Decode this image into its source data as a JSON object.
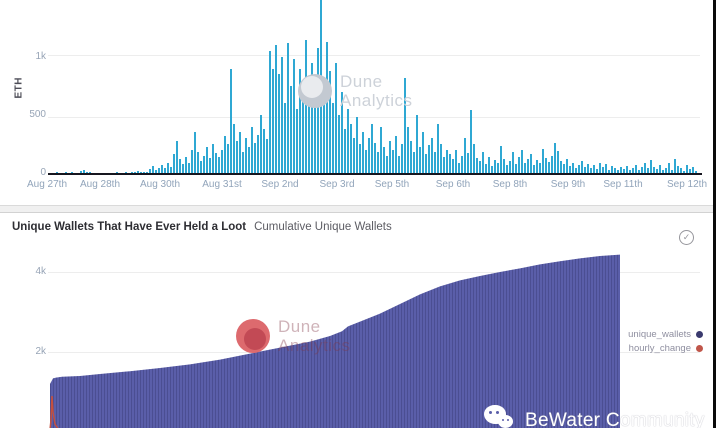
{
  "watermarks": {
    "dune_line1": "Dune",
    "dune_line2": "Analytics",
    "bewater": "BeWater Community"
  },
  "wallets_card": {
    "title": "Unique Wallets That Have Ever Held a Loot",
    "subtitle": "Cumulative Unique Wallets",
    "check_icon": "✓"
  },
  "chart_data": [
    {
      "id": "eth_hourly_volume",
      "type": "bar",
      "ylabel": "ETH",
      "bar_color": "#2FA8D3",
      "ylim": [
        0,
        1500
      ],
      "yticks": [
        {
          "label": "1k",
          "value": 1000
        },
        {
          "label": "500",
          "value": 500
        },
        {
          "label": "0",
          "value": 0
        }
      ],
      "xticks": [
        {
          "label": "Aug 27th",
          "px": 47
        },
        {
          "label": "Aug 28th",
          "px": 100
        },
        {
          "label": "Aug 30th",
          "px": 160
        },
        {
          "label": "Aug 31st",
          "px": 222
        },
        {
          "label": "Sep 2nd",
          "px": 280
        },
        {
          "label": "Sep 3rd",
          "px": 337
        },
        {
          "label": "Sep 5th",
          "px": 392
        },
        {
          "label": "Sep 6th",
          "px": 453
        },
        {
          "label": "Sep 8th",
          "px": 510
        },
        {
          "label": "Sep 9th",
          "px": 568
        },
        {
          "label": "Sep 11th",
          "px": 623
        },
        {
          "label": "Sep 12th",
          "px": 687
        }
      ],
      "values": [
        4,
        2,
        6,
        3,
        2,
        5,
        3,
        8,
        4,
        3,
        18,
        25,
        10,
        5,
        3,
        2,
        4,
        3,
        2,
        4,
        2,
        3,
        6,
        3,
        2,
        8,
        4,
        5,
        10,
        14,
        8,
        6,
        12,
        35,
        60,
        30,
        45,
        70,
        40,
        90,
        55,
        160,
        280,
        120,
        80,
        140,
        90,
        200,
        350,
        180,
        100,
        150,
        220,
        130,
        250,
        170,
        140,
        200,
        320,
        250,
        900,
        420,
        280,
        350,
        180,
        300,
        220,
        400,
        260,
        330,
        500,
        380,
        290,
        1050,
        900,
        1100,
        850,
        1000,
        600,
        1120,
        750,
        980,
        550,
        900,
        700,
        1150,
        800,
        950,
        650,
        1080,
        1500,
        720,
        1130,
        880,
        600,
        950,
        500,
        700,
        380,
        550,
        420,
        300,
        480,
        250,
        350,
        200,
        300,
        420,
        260,
        180,
        400,
        220,
        150,
        280,
        200,
        320,
        150,
        250,
        820,
        400,
        280,
        180,
        500,
        220,
        350,
        160,
        240,
        300,
        180,
        420,
        250,
        140,
        200,
        160,
        120,
        200,
        90,
        150,
        300,
        170,
        540,
        250,
        130,
        100,
        180,
        80,
        140,
        60,
        110,
        90,
        230,
        120,
        70,
        100,
        180,
        80,
        140,
        200,
        90,
        120,
        160,
        70,
        110,
        85,
        210,
        130,
        95,
        150,
        260,
        190,
        100,
        75,
        120,
        60,
        90,
        45,
        70,
        100,
        55,
        80,
        40,
        65,
        35,
        90,
        50,
        75,
        30,
        60,
        45,
        25,
        55,
        35,
        60,
        25,
        45,
        70,
        30,
        50,
        85,
        40,
        110,
        55,
        35,
        65,
        25,
        45,
        90,
        30,
        120,
        60,
        40,
        20,
        70,
        35,
        50,
        15
      ]
    },
    {
      "id": "unique_wallets_cumulative",
      "type": "area",
      "title": "Unique Wallets That Have Ever Held a Loot",
      "subtitle": "Cumulative Unique Wallets",
      "area_color": "#5A5EA9",
      "line_color": "#C4503F",
      "ylim": [
        0,
        5375
      ],
      "yticks": [
        {
          "label": "4k",
          "value": 4000
        },
        {
          "label": "2k",
          "value": 2000
        }
      ],
      "legend": [
        {
          "label": "unique_wallets",
          "color": "#3A3A6E"
        },
        {
          "label": "hourly_change",
          "color": "#C0564A"
        }
      ],
      "series": [
        {
          "name": "unique_wallets",
          "points": [
            [
              50,
              1200
            ],
            [
              53,
              1340
            ],
            [
              56,
              1360
            ],
            [
              62,
              1380
            ],
            [
              80,
              1400
            ],
            [
              100,
              1450
            ],
            [
              130,
              1520
            ],
            [
              160,
              1600
            ],
            [
              190,
              1690
            ],
            [
              220,
              1810
            ],
            [
              250,
              1960
            ],
            [
              280,
              2110
            ],
            [
              310,
              2260
            ],
            [
              330,
              2400
            ],
            [
              342,
              2520
            ],
            [
              348,
              2640
            ],
            [
              360,
              2760
            ],
            [
              380,
              2960
            ],
            [
              400,
              3200
            ],
            [
              420,
              3440
            ],
            [
              440,
              3640
            ],
            [
              460,
              3790
            ],
            [
              480,
              3900
            ],
            [
              500,
              4000
            ],
            [
              520,
              4090
            ],
            [
              540,
              4190
            ],
            [
              560,
              4270
            ],
            [
              580,
              4340
            ],
            [
              600,
              4400
            ],
            [
              620,
              4435
            ]
          ]
        },
        {
          "name": "hourly_change",
          "points": [
            [
              50,
              50
            ],
            [
              51,
              300
            ],
            [
              52,
              900
            ],
            [
              53,
              500
            ],
            [
              55,
              200
            ],
            [
              58,
              80
            ],
            [
              65,
              40
            ],
            [
              80,
              30
            ],
            [
              120,
              25
            ],
            [
              200,
              20
            ],
            [
              300,
              18
            ],
            [
              450,
              12
            ],
            [
              620,
              10
            ]
          ]
        }
      ]
    }
  ]
}
